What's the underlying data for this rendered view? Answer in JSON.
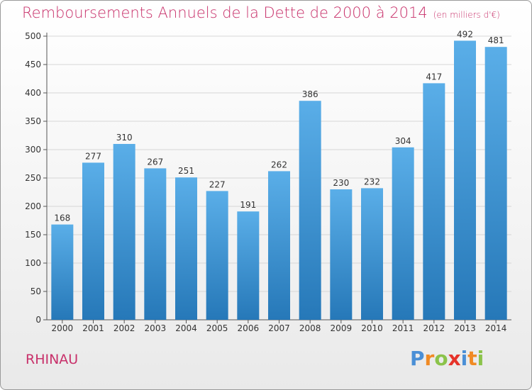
{
  "title": "Remboursements Annuels de la Dette de 2000 à 2014",
  "unit": "(en milliers d'€)",
  "commune": "RHINAU",
  "logo": {
    "letters": [
      "P",
      "r",
      "o",
      "x",
      "i",
      "t",
      "i"
    ],
    "colors": [
      "#4a8fd6",
      "#f08a24",
      "#8bc34a",
      "#e6332a",
      "#4a8fd6",
      "#f08a24",
      "#8bc34a"
    ]
  },
  "colors": {
    "bar_top": "#5aaee8",
    "bar_bottom": "#2678b8",
    "title": "#c8306a"
  },
  "chart_data": {
    "type": "bar",
    "title": "Remboursements Annuels de la Dette de 2000 à 2014",
    "categories": [
      "2000",
      "2001",
      "2002",
      "2003",
      "2004",
      "2005",
      "2006",
      "2007",
      "2008",
      "2009",
      "2010",
      "2011",
      "2012",
      "2013",
      "2014"
    ],
    "values": [
      168,
      277,
      310,
      267,
      251,
      227,
      191,
      262,
      386,
      230,
      232,
      304,
      417,
      492,
      481
    ],
    "yticks": [
      0,
      50,
      100,
      150,
      200,
      250,
      300,
      350,
      400,
      450,
      500
    ],
    "ylim": [
      0,
      500
    ],
    "grid": true
  }
}
